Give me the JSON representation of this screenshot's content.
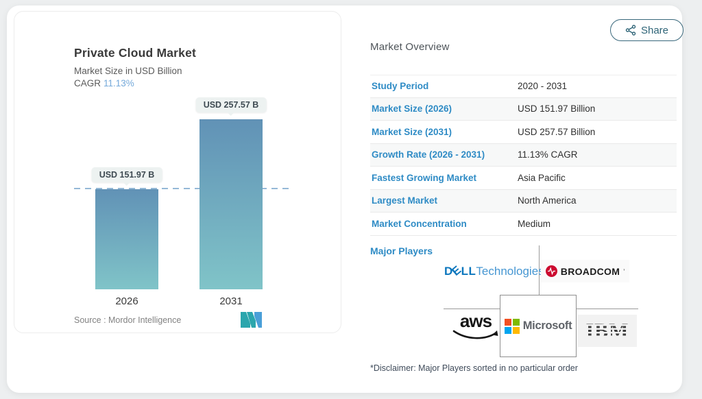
{
  "chart": {
    "title": "Private Cloud Market",
    "subtitle": "Market Size in USD Billion",
    "cagr_label": "CAGR",
    "cagr_value": "11.13%",
    "source": "Source :  Mordor Intelligence"
  },
  "chart_data": {
    "type": "bar",
    "title": "Private Cloud Market",
    "ylabel": "Market Size in USD Billion",
    "categories": [
      "2026",
      "2031"
    ],
    "values": [
      151.97,
      257.57
    ],
    "value_labels": [
      "USD 151.97 B",
      "USD 257.57 B"
    ],
    "cagr_percent": 11.13,
    "reference_line": 151.97,
    "ylim": [
      0,
      260
    ],
    "grid": false,
    "bar_gradient_top": "#6192b6",
    "bar_gradient_bottom": "#80c4c8",
    "reference_line_color": "#94b8d7"
  },
  "share": {
    "label": "Share"
  },
  "overview": {
    "heading": "Market Overview",
    "rows": [
      {
        "label": "Study Period",
        "value": "2020 - 2031"
      },
      {
        "label": "Market Size (2026)",
        "value": "USD 151.97 Billion"
      },
      {
        "label": "Market Size (2031)",
        "value": "USD 257.57 Billion"
      },
      {
        "label": "Growth Rate (2026 - 2031)",
        "value": "11.13% CAGR"
      },
      {
        "label": "Fastest Growing Market",
        "value": "Asia Pacific"
      },
      {
        "label": "Largest Market",
        "value": "North America"
      },
      {
        "label": "Market Concentration",
        "value": "Medium"
      }
    ],
    "major_players_label": "Major Players",
    "players": [
      "Dell Technologies",
      "Broadcom",
      "AWS",
      "Microsoft",
      "IBM"
    ],
    "disclaimer": "*Disclaimer: Major Players sorted in no particular order"
  },
  "logos": {
    "dell_prefix": "D",
    "dell_e": "E",
    "dell_suffix": "LL",
    "dell_tech": "Technologies",
    "broadcom": "BROADCOM",
    "broadcom_mark": "’",
    "aws": "aws",
    "microsoft": "Microsoft",
    "ibm": "IBM"
  },
  "colors": {
    "label_blue": "#2e8bc5",
    "cagr_blue": "#74a9da",
    "share_teal": "#2e6477",
    "page_bg": "#edeff0"
  }
}
